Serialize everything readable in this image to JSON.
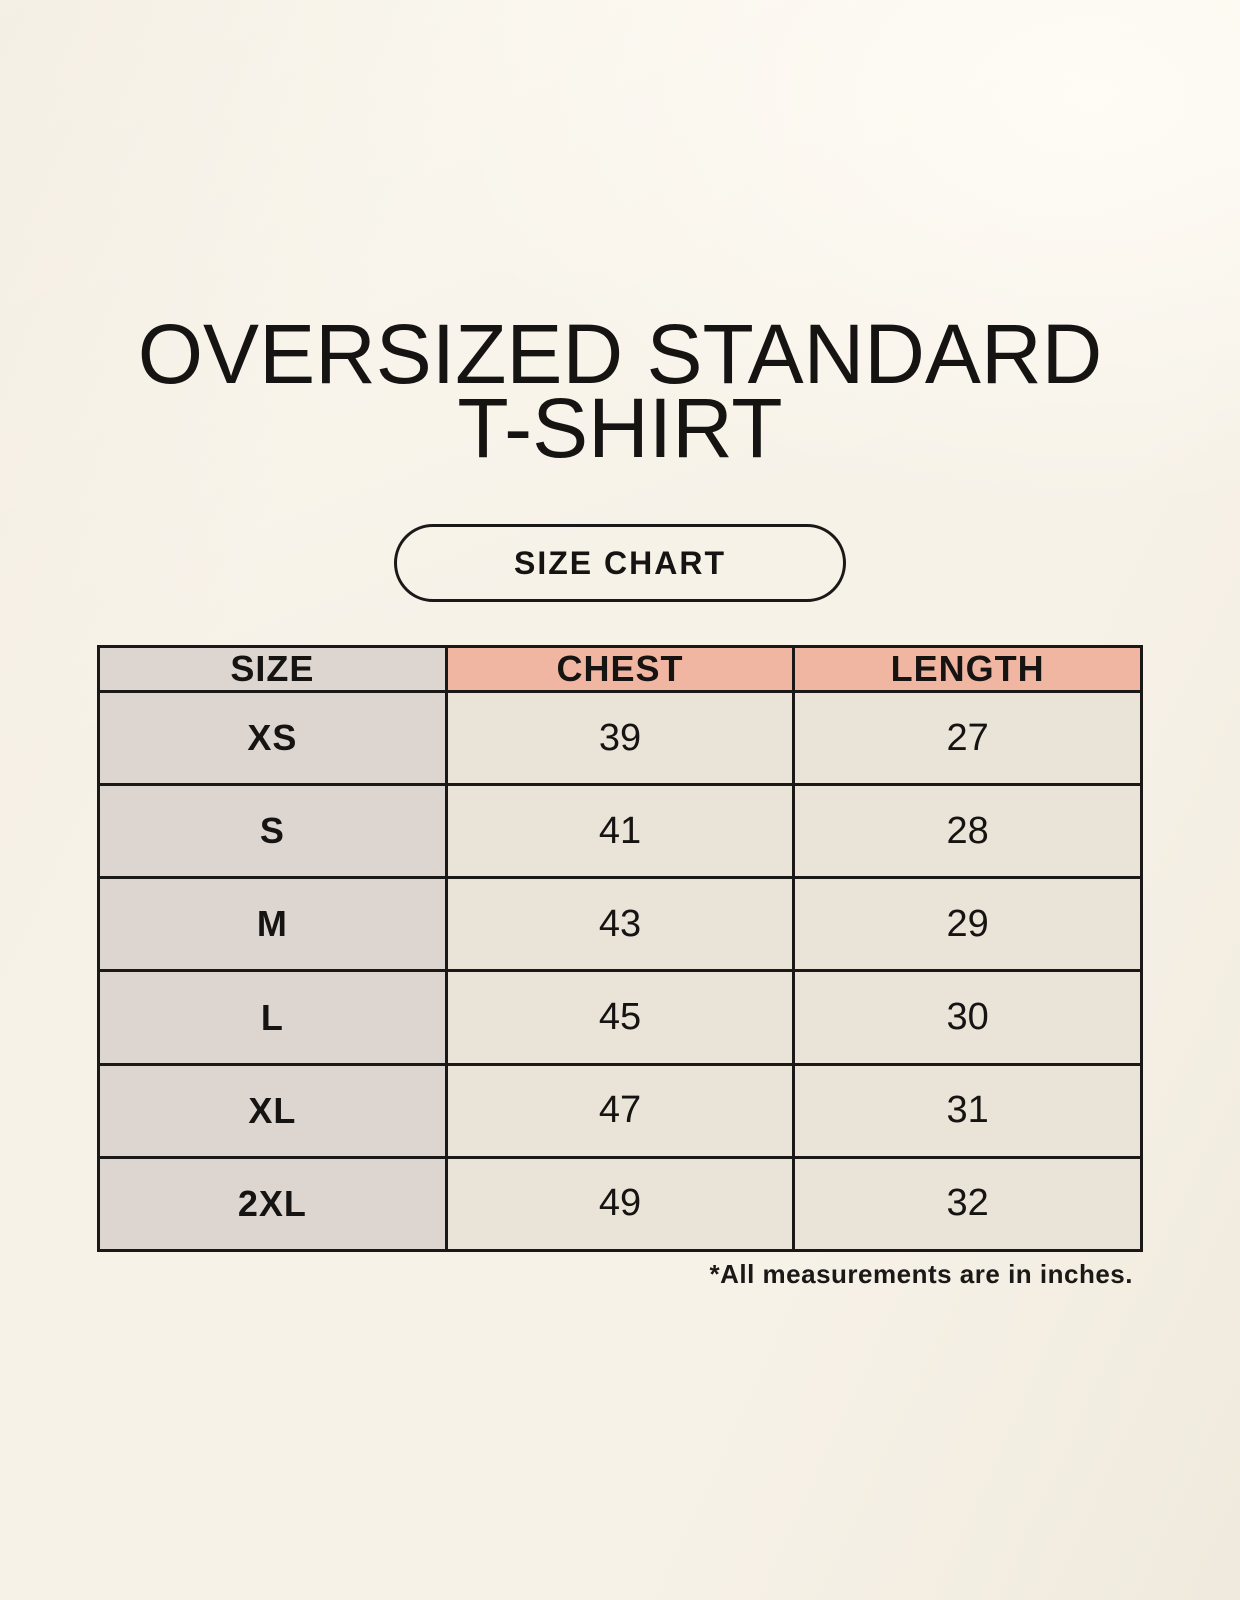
{
  "header": {
    "title_line1": "OVERSIZED STANDARD",
    "title_line2": "T-SHIRT",
    "badge_label": "SIZE CHART"
  },
  "chart_data": {
    "type": "table",
    "title": "OVERSIZED STANDARD T-SHIRT",
    "columns": [
      "SIZE",
      "CHEST",
      "LENGTH"
    ],
    "rows": [
      {
        "size": "XS",
        "chest": "39",
        "length": "27"
      },
      {
        "size": "S",
        "chest": "41",
        "length": "28"
      },
      {
        "size": "M",
        "chest": "43",
        "length": "29"
      },
      {
        "size": "L",
        "chest": "45",
        "length": "30"
      },
      {
        "size": "XL",
        "chest": "47",
        "length": "31"
      },
      {
        "size": "2XL",
        "chest": "49",
        "length": "32"
      }
    ]
  },
  "footnote": "*All measurements are in inches.",
  "colors": {
    "background": "#f7f2e8",
    "header_pink": "#f1b6a2",
    "size_column_gray": "#ddd5d0",
    "cell_cream": "#eae3d8",
    "border": "#1b1917",
    "text": "#161412"
  }
}
